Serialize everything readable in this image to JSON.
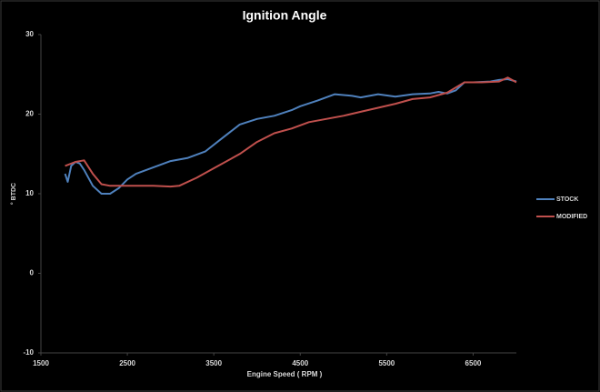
{
  "chart_data": {
    "type": "line",
    "title": "Ignition Angle",
    "x_label": "Engine Speed ( RPM )",
    "y_label": "° BTDC",
    "xlim": [
      1500,
      7000
    ],
    "xticks": [
      1500,
      2500,
      3500,
      4500,
      5500,
      6500
    ],
    "ylim": [
      -10,
      30
    ],
    "yticks": [
      -10,
      0,
      10,
      20,
      30
    ],
    "legend": "right",
    "series": [
      {
        "name": "STOCK",
        "color": "#4f81bd",
        "x": [
          1780,
          1810,
          1850,
          1900,
          1950,
          2000,
          2100,
          2200,
          2300,
          2400,
          2500,
          2600,
          2800,
          3000,
          3200,
          3400,
          3600,
          3800,
          4000,
          4200,
          4400,
          4500,
          4700,
          4900,
          5100,
          5200,
          5400,
          5600,
          5800,
          6000,
          6100,
          6200,
          6300,
          6400,
          6500,
          6700,
          6800,
          6900,
          7000
        ],
        "values": [
          12.5,
          11.5,
          13.5,
          14,
          13.8,
          13,
          11,
          10,
          10,
          10.7,
          11.8,
          12.5,
          13.3,
          14.1,
          14.5,
          15.3,
          17,
          18.7,
          19.4,
          19.8,
          20.5,
          21,
          21.7,
          22.5,
          22.3,
          22.1,
          22.5,
          22.2,
          22.5,
          22.6,
          22.8,
          22.6,
          23,
          24,
          24,
          24.1,
          24.3,
          24.4,
          24.1
        ]
      },
      {
        "name": "MODIFIED",
        "color": "#c0504d",
        "x": [
          1780,
          1900,
          2000,
          2100,
          2200,
          2300,
          2500,
          2800,
          3000,
          3100,
          3300,
          3500,
          3800,
          4000,
          4200,
          4400,
          4600,
          4800,
          5000,
          5200,
          5400,
          5600,
          5800,
          6000,
          6200,
          6400,
          6600,
          6800,
          6900,
          7000
        ],
        "values": [
          13.5,
          14,
          14.2,
          12.5,
          11.2,
          11,
          11,
          11,
          10.9,
          11,
          12,
          13.2,
          15,
          16.5,
          17.6,
          18.2,
          19,
          19.4,
          19.8,
          20.3,
          20.8,
          21.3,
          21.9,
          22.1,
          22.7,
          24,
          24,
          24.1,
          24.6,
          24
        ]
      }
    ]
  }
}
